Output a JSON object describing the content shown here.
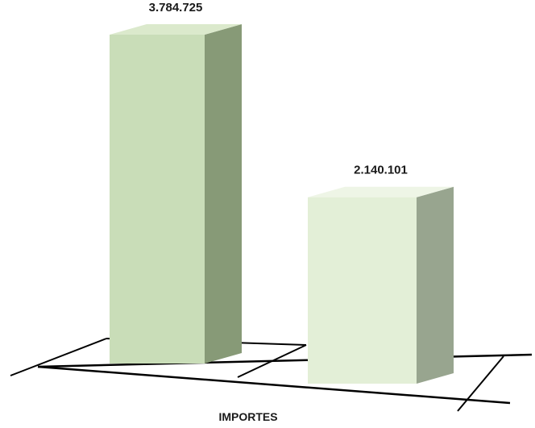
{
  "chart_data": {
    "type": "bar",
    "categories": [
      "IMPORTES"
    ],
    "series": [
      {
        "values": [
          3784725
        ],
        "label": "3.784.725",
        "front_color": "#c9ddb8",
        "top_color": "#dbe9cc",
        "side_color": "#879a77"
      },
      {
        "values": [
          2140101
        ],
        "label": "2.140.101",
        "front_color": "#e3efd7",
        "top_color": "#eef5e6",
        "side_color": "#98a58f"
      }
    ],
    "xlabel": "IMPORTES",
    "ylim": [
      0,
      3784725
    ],
    "grid": false,
    "legend": "none"
  }
}
